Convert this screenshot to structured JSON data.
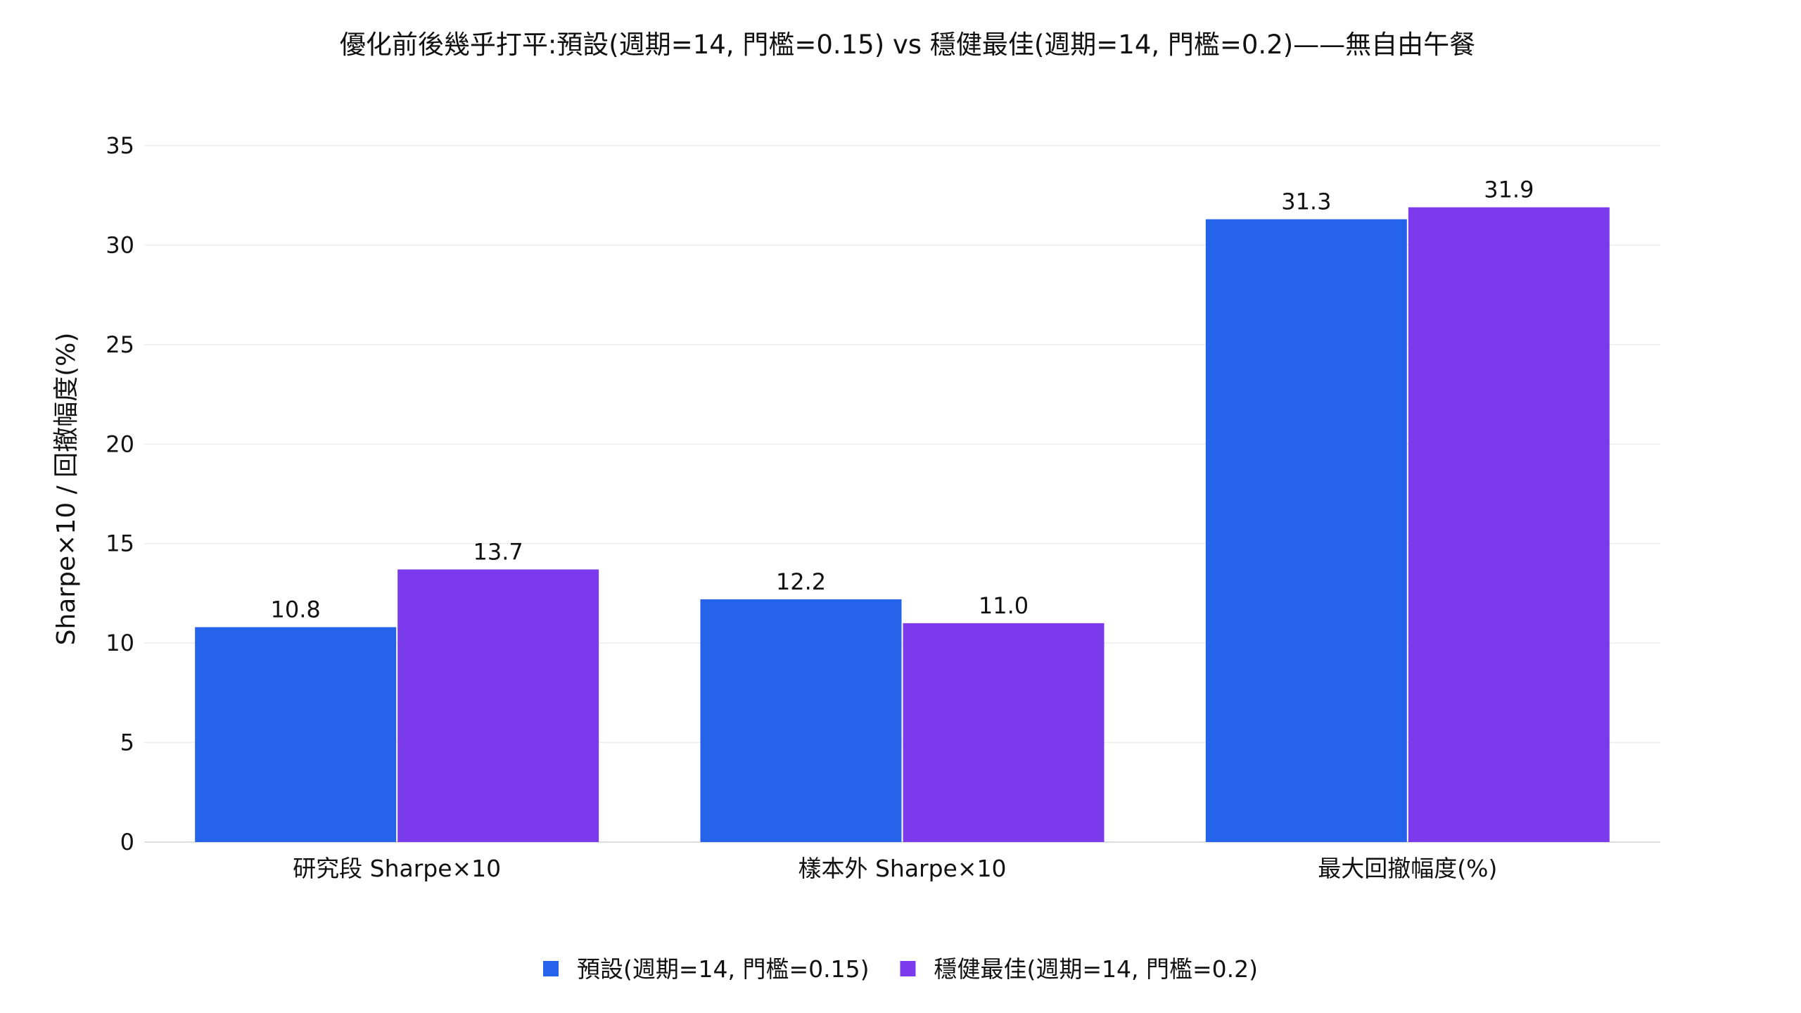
{
  "chart_data": {
    "type": "bar",
    "title": "優化前後幾乎打平:預設(週期=14, 門檻=0.15) vs 穩健最佳(週期=14, 門檻=0.2)——無自由午餐",
    "xlabel": "",
    "ylabel": "Sharpe×10 / 回撤幅度(%)",
    "ylim": [
      0,
      35
    ],
    "yticks": [
      0,
      5,
      10,
      15,
      20,
      25,
      30,
      35
    ],
    "categories": [
      "研究段 Sharpe×10",
      "樣本外 Sharpe×10",
      "最大回撤幅度(%)"
    ],
    "series": [
      {
        "name": "預設(週期=14, 門檻=0.15)",
        "color": "#2563eb",
        "values": [
          10.8,
          12.2,
          31.3
        ],
        "labels": [
          "10.8",
          "12.2",
          "31.3"
        ]
      },
      {
        "name": "穩健最佳(週期=14, 門檻=0.2)",
        "color": "#7c3aed",
        "values": [
          13.7,
          11.0,
          31.9
        ],
        "labels": [
          "13.7",
          "11.0",
          "31.9"
        ]
      }
    ],
    "grid": true,
    "legend_position": "bottom-center"
  }
}
